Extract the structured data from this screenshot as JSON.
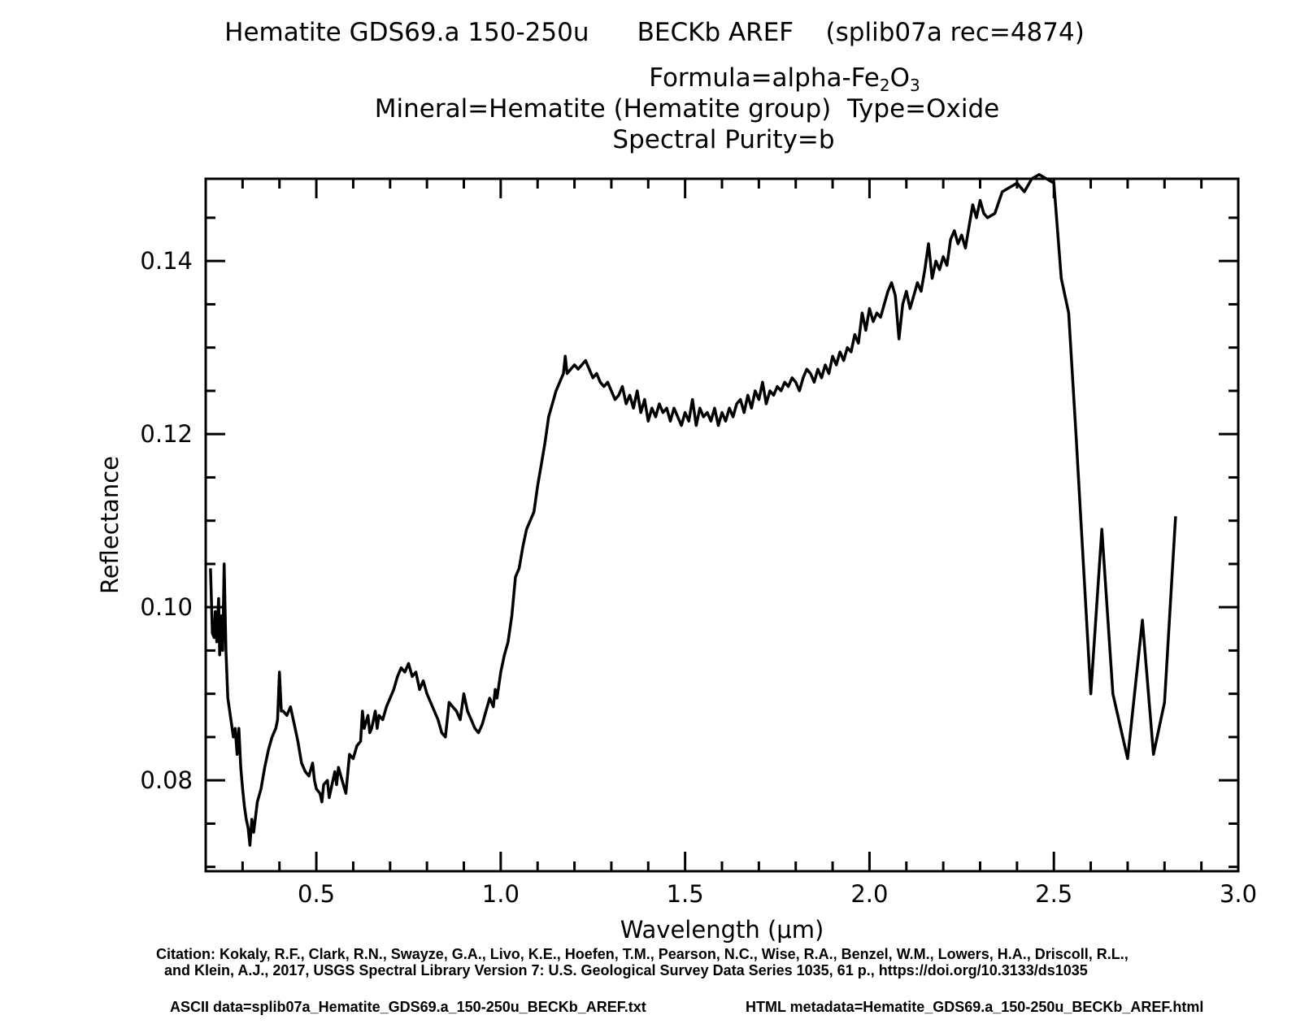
{
  "header": {
    "line1": "Hematite GDS69.a 150-250u      BECKb AREF    (splib07a rec=4874)",
    "formula_prefix": "Formula=alpha-Fe",
    "formula_sub1": "2",
    "formula_mid": "O",
    "formula_sub2": "3",
    "line3": "Mineral=Hematite (Hematite group)  Type=Oxide",
    "line4": "Spectral Purity=b"
  },
  "chart_data": {
    "type": "line",
    "xlabel": "Wavelength (μm)",
    "ylabel": "Reflectance",
    "xlim": [
      0.2,
      3.0
    ],
    "ylim": [
      0.0695,
      0.1495
    ],
    "xticks": [
      0.5,
      1.0,
      1.5,
      2.0,
      2.5,
      3.0
    ],
    "xtick_labels": [
      "0.5",
      "1.0",
      "1.5",
      "2.0",
      "2.5",
      "3.0"
    ],
    "yticks": [
      0.08,
      0.1,
      0.12,
      0.14
    ],
    "ytick_labels": [
      "0.08",
      "0.10",
      "0.12",
      "0.14"
    ],
    "grid": false,
    "series": [
      {
        "values_xy": [
          [
            0.213,
            0.1045
          ],
          [
            0.218,
            0.097
          ],
          [
            0.223,
            0.0965
          ],
          [
            0.226,
            0.0995
          ],
          [
            0.23,
            0.096
          ],
          [
            0.235,
            0.101
          ],
          [
            0.238,
            0.0945
          ],
          [
            0.242,
            0.099
          ],
          [
            0.246,
            0.095
          ],
          [
            0.25,
            0.105
          ],
          [
            0.255,
            0.095
          ],
          [
            0.26,
            0.0895
          ],
          [
            0.265,
            0.088
          ],
          [
            0.27,
            0.0865
          ],
          [
            0.275,
            0.085
          ],
          [
            0.28,
            0.086
          ],
          [
            0.285,
            0.083
          ],
          [
            0.29,
            0.086
          ],
          [
            0.295,
            0.0815
          ],
          [
            0.3,
            0.079
          ],
          [
            0.305,
            0.077
          ],
          [
            0.31,
            0.0755
          ],
          [
            0.315,
            0.0745
          ],
          [
            0.32,
            0.0725
          ],
          [
            0.325,
            0.0755
          ],
          [
            0.33,
            0.074
          ],
          [
            0.34,
            0.0775
          ],
          [
            0.35,
            0.079
          ],
          [
            0.36,
            0.0815
          ],
          [
            0.37,
            0.0835
          ],
          [
            0.38,
            0.085
          ],
          [
            0.39,
            0.086
          ],
          [
            0.395,
            0.087
          ],
          [
            0.4,
            0.0925
          ],
          [
            0.405,
            0.088
          ],
          [
            0.41,
            0.088
          ],
          [
            0.42,
            0.0875
          ],
          [
            0.43,
            0.0885
          ],
          [
            0.44,
            0.0865
          ],
          [
            0.45,
            0.0845
          ],
          [
            0.46,
            0.082
          ],
          [
            0.47,
            0.081
          ],
          [
            0.48,
            0.0805
          ],
          [
            0.49,
            0.082
          ],
          [
            0.495,
            0.08
          ],
          [
            0.5,
            0.079
          ],
          [
            0.51,
            0.0785
          ],
          [
            0.515,
            0.0775
          ],
          [
            0.52,
            0.0795
          ],
          [
            0.53,
            0.08
          ],
          [
            0.535,
            0.078
          ],
          [
            0.54,
            0.079
          ],
          [
            0.55,
            0.081
          ],
          [
            0.555,
            0.0795
          ],
          [
            0.56,
            0.0815
          ],
          [
            0.57,
            0.08
          ],
          [
            0.58,
            0.0785
          ],
          [
            0.59,
            0.083
          ],
          [
            0.6,
            0.0825
          ],
          [
            0.61,
            0.084
          ],
          [
            0.62,
            0.0845
          ],
          [
            0.625,
            0.088
          ],
          [
            0.63,
            0.086
          ],
          [
            0.64,
            0.0875
          ],
          [
            0.645,
            0.0855
          ],
          [
            0.65,
            0.086
          ],
          [
            0.66,
            0.088
          ],
          [
            0.665,
            0.086
          ],
          [
            0.67,
            0.0875
          ],
          [
            0.68,
            0.087
          ],
          [
            0.69,
            0.0885
          ],
          [
            0.7,
            0.0895
          ],
          [
            0.71,
            0.0905
          ],
          [
            0.72,
            0.092
          ],
          [
            0.73,
            0.093
          ],
          [
            0.74,
            0.0925
          ],
          [
            0.75,
            0.0935
          ],
          [
            0.76,
            0.092
          ],
          [
            0.77,
            0.0925
          ],
          [
            0.78,
            0.0905
          ],
          [
            0.79,
            0.0915
          ],
          [
            0.8,
            0.09
          ],
          [
            0.81,
            0.089
          ],
          [
            0.82,
            0.088
          ],
          [
            0.83,
            0.087
          ],
          [
            0.84,
            0.0855
          ],
          [
            0.85,
            0.085
          ],
          [
            0.86,
            0.089
          ],
          [
            0.87,
            0.0885
          ],
          [
            0.88,
            0.088
          ],
          [
            0.89,
            0.087
          ],
          [
            0.9,
            0.09
          ],
          [
            0.91,
            0.088
          ],
          [
            0.92,
            0.087
          ],
          [
            0.93,
            0.086
          ],
          [
            0.94,
            0.0855
          ],
          [
            0.95,
            0.0865
          ],
          [
            0.96,
            0.088
          ],
          [
            0.97,
            0.0895
          ],
          [
            0.98,
            0.0885
          ],
          [
            0.985,
            0.0905
          ],
          [
            0.99,
            0.0895
          ],
          [
            1.0,
            0.0925
          ],
          [
            1.01,
            0.0945
          ],
          [
            1.02,
            0.096
          ],
          [
            1.03,
            0.099
          ],
          [
            1.04,
            0.1035
          ],
          [
            1.05,
            0.1045
          ],
          [
            1.06,
            0.107
          ],
          [
            1.07,
            0.109
          ],
          [
            1.08,
            0.11
          ],
          [
            1.09,
            0.111
          ],
          [
            1.1,
            0.114
          ],
          [
            1.11,
            0.1165
          ],
          [
            1.12,
            0.119
          ],
          [
            1.13,
            0.122
          ],
          [
            1.14,
            0.1235
          ],
          [
            1.15,
            0.125
          ],
          [
            1.16,
            0.126
          ],
          [
            1.17,
            0.127
          ],
          [
            1.175,
            0.129
          ],
          [
            1.18,
            0.127
          ],
          [
            1.19,
            0.1275
          ],
          [
            1.2,
            0.128
          ],
          [
            1.21,
            0.1275
          ],
          [
            1.22,
            0.128
          ],
          [
            1.23,
            0.1285
          ],
          [
            1.24,
            0.1275
          ],
          [
            1.25,
            0.1265
          ],
          [
            1.26,
            0.127
          ],
          [
            1.27,
            0.126
          ],
          [
            1.28,
            0.1255
          ],
          [
            1.29,
            0.126
          ],
          [
            1.3,
            0.125
          ],
          [
            1.31,
            0.124
          ],
          [
            1.32,
            0.1245
          ],
          [
            1.33,
            0.1255
          ],
          [
            1.34,
            0.1235
          ],
          [
            1.35,
            0.1245
          ],
          [
            1.36,
            0.123
          ],
          [
            1.37,
            0.125
          ],
          [
            1.38,
            0.1225
          ],
          [
            1.39,
            0.124
          ],
          [
            1.4,
            0.1215
          ],
          [
            1.41,
            0.123
          ],
          [
            1.42,
            0.122
          ],
          [
            1.43,
            0.1235
          ],
          [
            1.44,
            0.1225
          ],
          [
            1.45,
            0.123
          ],
          [
            1.46,
            0.1215
          ],
          [
            1.47,
            0.123
          ],
          [
            1.48,
            0.122
          ],
          [
            1.49,
            0.121
          ],
          [
            1.5,
            0.1225
          ],
          [
            1.51,
            0.1215
          ],
          [
            1.52,
            0.124
          ],
          [
            1.53,
            0.121
          ],
          [
            1.54,
            0.123
          ],
          [
            1.55,
            0.122
          ],
          [
            1.56,
            0.1225
          ],
          [
            1.57,
            0.1215
          ],
          [
            1.58,
            0.123
          ],
          [
            1.59,
            0.121
          ],
          [
            1.6,
            0.1225
          ],
          [
            1.61,
            0.1215
          ],
          [
            1.62,
            0.123
          ],
          [
            1.63,
            0.122
          ],
          [
            1.64,
            0.1235
          ],
          [
            1.65,
            0.124
          ],
          [
            1.66,
            0.1225
          ],
          [
            1.67,
            0.1245
          ],
          [
            1.68,
            0.123
          ],
          [
            1.69,
            0.125
          ],
          [
            1.7,
            0.124
          ],
          [
            1.71,
            0.126
          ],
          [
            1.72,
            0.1235
          ],
          [
            1.73,
            0.125
          ],
          [
            1.74,
            0.1245
          ],
          [
            1.75,
            0.1255
          ],
          [
            1.76,
            0.125
          ],
          [
            1.77,
            0.126
          ],
          [
            1.78,
            0.1255
          ],
          [
            1.79,
            0.1265
          ],
          [
            1.8,
            0.126
          ],
          [
            1.81,
            0.125
          ],
          [
            1.82,
            0.1265
          ],
          [
            1.83,
            0.1275
          ],
          [
            1.84,
            0.127
          ],
          [
            1.85,
            0.126
          ],
          [
            1.86,
            0.1275
          ],
          [
            1.87,
            0.1265
          ],
          [
            1.88,
            0.128
          ],
          [
            1.89,
            0.127
          ],
          [
            1.9,
            0.129
          ],
          [
            1.91,
            0.128
          ],
          [
            1.92,
            0.1295
          ],
          [
            1.93,
            0.1285
          ],
          [
            1.94,
            0.13
          ],
          [
            1.95,
            0.1295
          ],
          [
            1.96,
            0.1315
          ],
          [
            1.97,
            0.1305
          ],
          [
            1.98,
            0.134
          ],
          [
            1.99,
            0.132
          ],
          [
            2.0,
            0.1345
          ],
          [
            2.01,
            0.133
          ],
          [
            2.02,
            0.134
          ],
          [
            2.03,
            0.1335
          ],
          [
            2.04,
            0.135
          ],
          [
            2.05,
            0.1365
          ],
          [
            2.06,
            0.1375
          ],
          [
            2.07,
            0.136
          ],
          [
            2.08,
            0.131
          ],
          [
            2.09,
            0.135
          ],
          [
            2.1,
            0.1365
          ],
          [
            2.11,
            0.1345
          ],
          [
            2.12,
            0.136
          ],
          [
            2.13,
            0.1375
          ],
          [
            2.14,
            0.1365
          ],
          [
            2.15,
            0.139
          ],
          [
            2.16,
            0.142
          ],
          [
            2.17,
            0.138
          ],
          [
            2.18,
            0.14
          ],
          [
            2.19,
            0.139
          ],
          [
            2.2,
            0.1405
          ],
          [
            2.21,
            0.1395
          ],
          [
            2.22,
            0.1425
          ],
          [
            2.23,
            0.1435
          ],
          [
            2.24,
            0.142
          ],
          [
            2.25,
            0.143
          ],
          [
            2.26,
            0.1415
          ],
          [
            2.27,
            0.144
          ],
          [
            2.28,
            0.1465
          ],
          [
            2.29,
            0.145
          ],
          [
            2.3,
            0.147
          ],
          [
            2.31,
            0.1455
          ],
          [
            2.32,
            0.145
          ],
          [
            2.34,
            0.1455
          ],
          [
            2.36,
            0.148
          ],
          [
            2.4,
            0.149
          ],
          [
            2.42,
            0.148
          ],
          [
            2.44,
            0.1495
          ],
          [
            2.46,
            0.15
          ],
          [
            2.5,
            0.149
          ],
          [
            2.52,
            0.138
          ],
          [
            2.54,
            0.134
          ],
          [
            2.56,
            0.12
          ],
          [
            2.58,
            0.105
          ],
          [
            2.6,
            0.09
          ],
          [
            2.63,
            0.109
          ],
          [
            2.66,
            0.09
          ],
          [
            2.7,
            0.0825
          ],
          [
            2.74,
            0.0985
          ],
          [
            2.77,
            0.083
          ],
          [
            2.8,
            0.089
          ],
          [
            2.83,
            0.1105
          ]
        ]
      }
    ]
  },
  "footer": {
    "citation_line1": "Citation: Kokaly, R.F., Clark, R.N., Swayze, G.A., Livo, K.E., Hoefen, T.M., Pearson, N.C., Wise, R.A., Benzel, W.M., Lowers, H.A., Driscoll, R.L.,",
    "citation_line2": "and Klein, A.J., 2017, USGS Spectral Library Version 7: U.S. Geological Survey Data Series 1035, 61 p., https://doi.org/10.3133/ds1035",
    "ascii": "ASCII data=splib07a_Hematite_GDS69.a_150-250u_BECKb_AREF.txt",
    "html_metadata": "HTML metadata=Hematite_GDS69.a_150-250u_BECKb_AREF.html"
  }
}
